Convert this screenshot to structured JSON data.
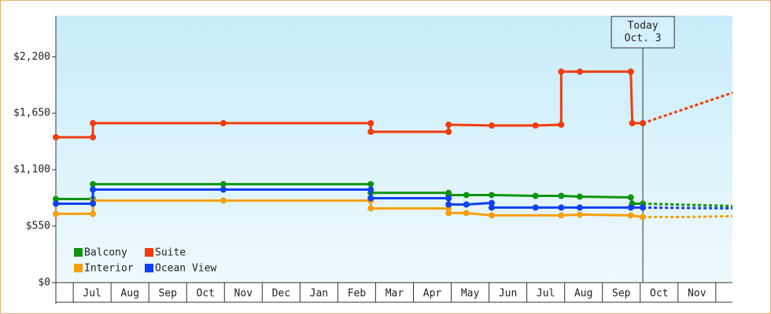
{
  "chart_data": {
    "type": "line",
    "categories": [
      "Jul",
      "Aug",
      "Sep",
      "Oct",
      "Nov",
      "Dec",
      "Jan",
      "Feb",
      "Mar",
      "Apr",
      "May",
      "Jun",
      "Jul",
      "Aug",
      "Sep",
      "Oct",
      "Nov"
    ],
    "xlim": [
      -0.46,
      17.44
    ],
    "ylim": [
      0,
      2600
    ],
    "yticks": [
      {
        "value": 0,
        "label": "$0"
      },
      {
        "value": 550,
        "label": "$550"
      },
      {
        "value": 1100,
        "label": "$1,100"
      },
      {
        "value": 1650,
        "label": "$1,650"
      },
      {
        "value": 2200,
        "label": "$2,200"
      }
    ],
    "annotation": {
      "x": 15.07,
      "lines": [
        "Today",
        "Oct. 3"
      ]
    },
    "series": [
      {
        "name": "Balcony",
        "color": "#109410",
        "x": [
          -0.46,
          0.52,
          0.52,
          3.97,
          7.87,
          7.87,
          9.93,
          9.93,
          10.4,
          11.07,
          12.23,
          12.91,
          13.4,
          14.75,
          14.79,
          15.07
        ],
        "values": [
          814,
          814,
          959,
          959,
          959,
          875,
          875,
          853,
          853,
          853,
          845,
          845,
          837,
          830,
          769,
          769
        ],
        "forecast": {
          "x": [
            15.07,
            17.44
          ],
          "values": [
            769,
            746
          ]
        }
      },
      {
        "name": "Suite",
        "color": "#f03c10",
        "x": [
          -0.46,
          0.52,
          0.52,
          3.97,
          7.87,
          7.87,
          9.93,
          9.93,
          11.07,
          12.23,
          12.91,
          12.91,
          13.4,
          14.75,
          14.79,
          15.07
        ],
        "values": [
          1416,
          1416,
          1553,
          1553,
          1553,
          1469,
          1469,
          1538,
          1530,
          1530,
          1538,
          2055,
          2055,
          2055,
          1553,
          1553
        ],
        "forecast": {
          "x": [
            15.07,
            17.44
          ],
          "values": [
            1553,
            1850
          ]
        }
      },
      {
        "name": "Interior",
        "color": "#f5a010",
        "x": [
          -0.46,
          0.52,
          0.52,
          3.97,
          7.87,
          7.87,
          9.93,
          9.93,
          10.4,
          11.07,
          12.91,
          13.4,
          14.75,
          15.07
        ],
        "values": [
          670,
          670,
          799,
          799,
          799,
          723,
          723,
          678,
          678,
          655,
          655,
          662,
          655,
          639
        ],
        "forecast": {
          "x": [
            15.07,
            16.2,
            17.44
          ],
          "values": [
            639,
            639,
            647
          ]
        }
      },
      {
        "name": "Ocean View",
        "color": "#1040f0",
        "x": [
          -0.46,
          0.52,
          0.52,
          3.97,
          7.87,
          7.87,
          9.93,
          9.93,
          10.4,
          11.07,
          11.07,
          12.23,
          12.91,
          13.4,
          14.75,
          15.07
        ],
        "values": [
          769,
          769,
          906,
          906,
          906,
          822,
          822,
          761,
          761,
          776,
          731,
          731,
          731,
          731,
          731,
          731
        ],
        "forecast": {
          "x": [
            15.07,
            17.44
          ],
          "values": [
            731,
            723
          ]
        }
      }
    ]
  }
}
